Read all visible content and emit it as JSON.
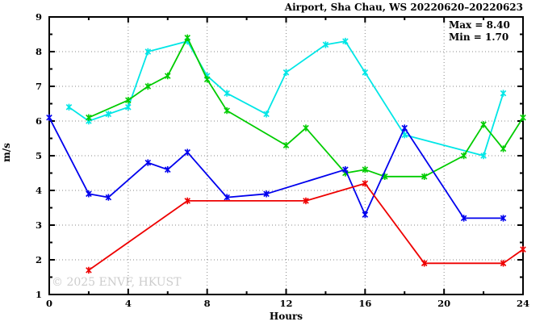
{
  "figure": {
    "annotation": {
      "max": "Max = 8.40",
      "min": "Min = 1.70"
    },
    "watermark": "© 2025 ENVF, HKUST",
    "colors": {
      "frame": "#000000",
      "grid": "#8a8a8a",
      "watermark": "#cdcdcd",
      "text": "#000000"
    }
  },
  "chart_data": {
    "type": "line",
    "title": "Airport, Sha Chau, WS 20220620–20220623",
    "xlabel": "Hours",
    "ylabel": "m/s",
    "xlim": [
      0,
      24
    ],
    "ylim": [
      1,
      9
    ],
    "x_major_ticks": [
      0,
      4,
      8,
      12,
      16,
      20,
      24
    ],
    "x_minor_ticks": [
      2,
      6,
      10,
      14,
      18,
      22
    ],
    "y_major_ticks": [
      1,
      2,
      3,
      4,
      5,
      6,
      7,
      8,
      9
    ],
    "y_minor_ticks": [
      1.5,
      2.5,
      3.5,
      4.5,
      5.5,
      6.5,
      7.5,
      8.5
    ],
    "x_gridlines": [
      4,
      8,
      12,
      16,
      20
    ],
    "y_gridlines": [
      2,
      3,
      4,
      5,
      6,
      7,
      8
    ],
    "grid": true,
    "legend_position": "none",
    "max_value": 8.4,
    "min_value": 1.7,
    "series": [
      {
        "name": "line-cyan",
        "color": "#00e6e6",
        "points": [
          [
            1,
            6.4
          ],
          [
            2,
            6.0
          ],
          [
            3,
            6.2
          ],
          [
            4,
            6.4
          ],
          [
            5,
            8.0
          ],
          [
            7,
            8.3
          ],
          [
            8,
            7.3
          ],
          [
            9,
            6.8
          ],
          [
            11,
            6.2
          ],
          [
            12,
            7.4
          ],
          [
            14,
            8.2
          ],
          [
            15,
            8.3
          ],
          [
            16,
            7.4
          ],
          [
            18,
            5.6
          ],
          [
            22,
            5.0
          ],
          [
            23,
            6.8
          ]
        ]
      },
      {
        "name": "line-green",
        "color": "#00cc00",
        "points": [
          [
            2,
            6.1
          ],
          [
            4,
            6.6
          ],
          [
            5,
            7.0
          ],
          [
            6,
            7.3
          ],
          [
            7,
            8.4
          ],
          [
            8,
            7.2
          ],
          [
            9,
            6.3
          ],
          [
            12,
            5.3
          ],
          [
            13,
            5.8
          ],
          [
            15,
            4.5
          ],
          [
            16,
            4.6
          ],
          [
            17,
            4.4
          ],
          [
            19,
            4.4
          ],
          [
            21,
            5.0
          ],
          [
            22,
            5.9
          ],
          [
            23,
            5.2
          ],
          [
            24,
            6.1
          ]
        ]
      },
      {
        "name": "line-blue",
        "color": "#0000ee",
        "points": [
          [
            0,
            6.1
          ],
          [
            2,
            3.9
          ],
          [
            3,
            3.8
          ],
          [
            5,
            4.8
          ],
          [
            6,
            4.6
          ],
          [
            7,
            5.1
          ],
          [
            9,
            3.8
          ],
          [
            11,
            3.9
          ],
          [
            15,
            4.6
          ],
          [
            16,
            3.3
          ],
          [
            18,
            5.8
          ],
          [
            21,
            3.2
          ],
          [
            23,
            3.2
          ]
        ]
      },
      {
        "name": "line-red",
        "color": "#ee0000",
        "points": [
          [
            2,
            1.7
          ],
          [
            7,
            3.7
          ],
          [
            13,
            3.7
          ],
          [
            16,
            4.2
          ],
          [
            19,
            1.9
          ],
          [
            23,
            1.9
          ],
          [
            24,
            2.3
          ]
        ]
      }
    ]
  }
}
